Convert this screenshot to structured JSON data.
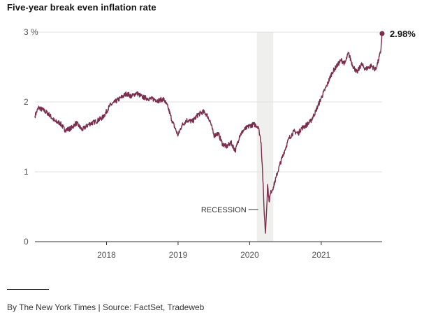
{
  "title": "Five-year break even inflation rate",
  "credit": "By The New York Times | Source: FactSet, Tradeweb",
  "colors": {
    "line": "#7b2d4e",
    "grid": "#e2e2e2",
    "axis": "#333333",
    "recession": "#efefed"
  },
  "chart_data": {
    "type": "line",
    "title": "Five-year break even inflation rate",
    "xlabel": "",
    "ylabel": "",
    "xlim": [
      2017.0,
      2021.85
    ],
    "ylim": [
      0,
      3
    ],
    "y_ticks": [
      {
        "value": 0,
        "label": "0"
      },
      {
        "value": 1,
        "label": "1"
      },
      {
        "value": 2,
        "label": "2"
      },
      {
        "value": 3,
        "label": "3 %"
      }
    ],
    "x_ticks": [
      {
        "value": 2018,
        "label": "2018"
      },
      {
        "value": 2019,
        "label": "2019"
      },
      {
        "value": 2020,
        "label": "2020"
      },
      {
        "value": 2021,
        "label": "2021"
      }
    ],
    "grid": true,
    "recession": {
      "start": 2020.1,
      "end": 2020.33,
      "label": "RECESSION",
      "label_y": 0.46
    },
    "end_point": {
      "x": 2021.85,
      "y": 2.98,
      "label": "2.98%"
    },
    "series": [
      {
        "values": [
          [
            2017.0,
            1.8
          ],
          [
            2017.05,
            1.92
          ],
          [
            2017.12,
            1.88
          ],
          [
            2017.2,
            1.82
          ],
          [
            2017.28,
            1.72
          ],
          [
            2017.35,
            1.7
          ],
          [
            2017.42,
            1.6
          ],
          [
            2017.5,
            1.62
          ],
          [
            2017.58,
            1.7
          ],
          [
            2017.66,
            1.6
          ],
          [
            2017.75,
            1.68
          ],
          [
            2017.85,
            1.72
          ],
          [
            2017.95,
            1.78
          ],
          [
            2018.05,
            1.95
          ],
          [
            2018.12,
            2.0
          ],
          [
            2018.2,
            2.06
          ],
          [
            2018.28,
            2.12
          ],
          [
            2018.35,
            2.08
          ],
          [
            2018.42,
            2.13
          ],
          [
            2018.5,
            2.07
          ],
          [
            2018.58,
            2.05
          ],
          [
            2018.66,
            2.04
          ],
          [
            2018.72,
            2.02
          ],
          [
            2018.8,
            2.04
          ],
          [
            2018.86,
            1.92
          ],
          [
            2018.92,
            1.72
          ],
          [
            2019.0,
            1.52
          ],
          [
            2019.05,
            1.66
          ],
          [
            2019.12,
            1.74
          ],
          [
            2019.2,
            1.72
          ],
          [
            2019.28,
            1.82
          ],
          [
            2019.35,
            1.86
          ],
          [
            2019.4,
            1.82
          ],
          [
            2019.45,
            1.72
          ],
          [
            2019.5,
            1.52
          ],
          [
            2019.56,
            1.55
          ],
          [
            2019.62,
            1.4
          ],
          [
            2019.68,
            1.36
          ],
          [
            2019.74,
            1.42
          ],
          [
            2019.8,
            1.3
          ],
          [
            2019.86,
            1.52
          ],
          [
            2019.92,
            1.6
          ],
          [
            2020.0,
            1.66
          ],
          [
            2020.06,
            1.68
          ],
          [
            2020.12,
            1.65
          ],
          [
            2020.16,
            1.42
          ],
          [
            2020.18,
            1.0
          ],
          [
            2020.2,
            0.5
          ],
          [
            2020.22,
            0.12
          ],
          [
            2020.235,
            0.42
          ],
          [
            2020.25,
            0.82
          ],
          [
            2020.27,
            0.58
          ],
          [
            2020.3,
            0.72
          ],
          [
            2020.33,
            0.78
          ],
          [
            2020.37,
            0.92
          ],
          [
            2020.42,
            1.1
          ],
          [
            2020.48,
            1.28
          ],
          [
            2020.55,
            1.48
          ],
          [
            2020.62,
            1.58
          ],
          [
            2020.68,
            1.55
          ],
          [
            2020.72,
            1.62
          ],
          [
            2020.78,
            1.66
          ],
          [
            2020.85,
            1.72
          ],
          [
            2020.92,
            1.86
          ],
          [
            2021.0,
            2.06
          ],
          [
            2021.08,
            2.24
          ],
          [
            2021.15,
            2.42
          ],
          [
            2021.22,
            2.52
          ],
          [
            2021.28,
            2.6
          ],
          [
            2021.33,
            2.55
          ],
          [
            2021.38,
            2.7
          ],
          [
            2021.44,
            2.52
          ],
          [
            2021.5,
            2.42
          ],
          [
            2021.56,
            2.54
          ],
          [
            2021.62,
            2.47
          ],
          [
            2021.7,
            2.52
          ],
          [
            2021.76,
            2.46
          ],
          [
            2021.8,
            2.6
          ],
          [
            2021.83,
            2.72
          ],
          [
            2021.85,
            2.98
          ]
        ]
      }
    ]
  }
}
